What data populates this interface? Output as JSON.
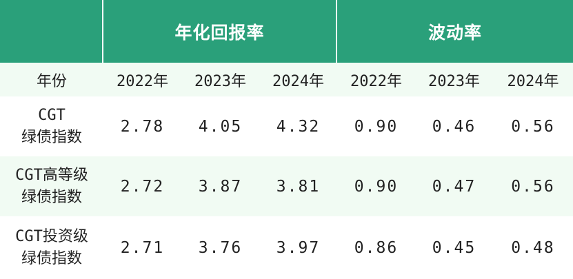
{
  "header": {
    "group1": "年化回报率",
    "group2": "波动率"
  },
  "columns": {
    "row_label": "年份",
    "years": [
      "2022年",
      "2023年",
      "2024年",
      "2022年",
      "2023年",
      "2024年"
    ]
  },
  "rows": [
    {
      "label_line1": "CGT",
      "label_line2": "绿债指数",
      "values": [
        "2.78",
        "4.05",
        "4.32",
        "0.90",
        "0.46",
        "0.56"
      ]
    },
    {
      "label_line1": "CGT高等级",
      "label_line2": "绿债指数",
      "values": [
        "2.72",
        "3.87",
        "3.81",
        "0.90",
        "0.47",
        "0.56"
      ]
    },
    {
      "label_line1": "CGT投资级",
      "label_line2": "绿债指数",
      "values": [
        "2.71",
        "3.76",
        "3.97",
        "0.86",
        "0.45",
        "0.48"
      ]
    }
  ],
  "colors": {
    "header_bg": "#2aa07a",
    "stripe_bg": "#f1fbf3"
  }
}
